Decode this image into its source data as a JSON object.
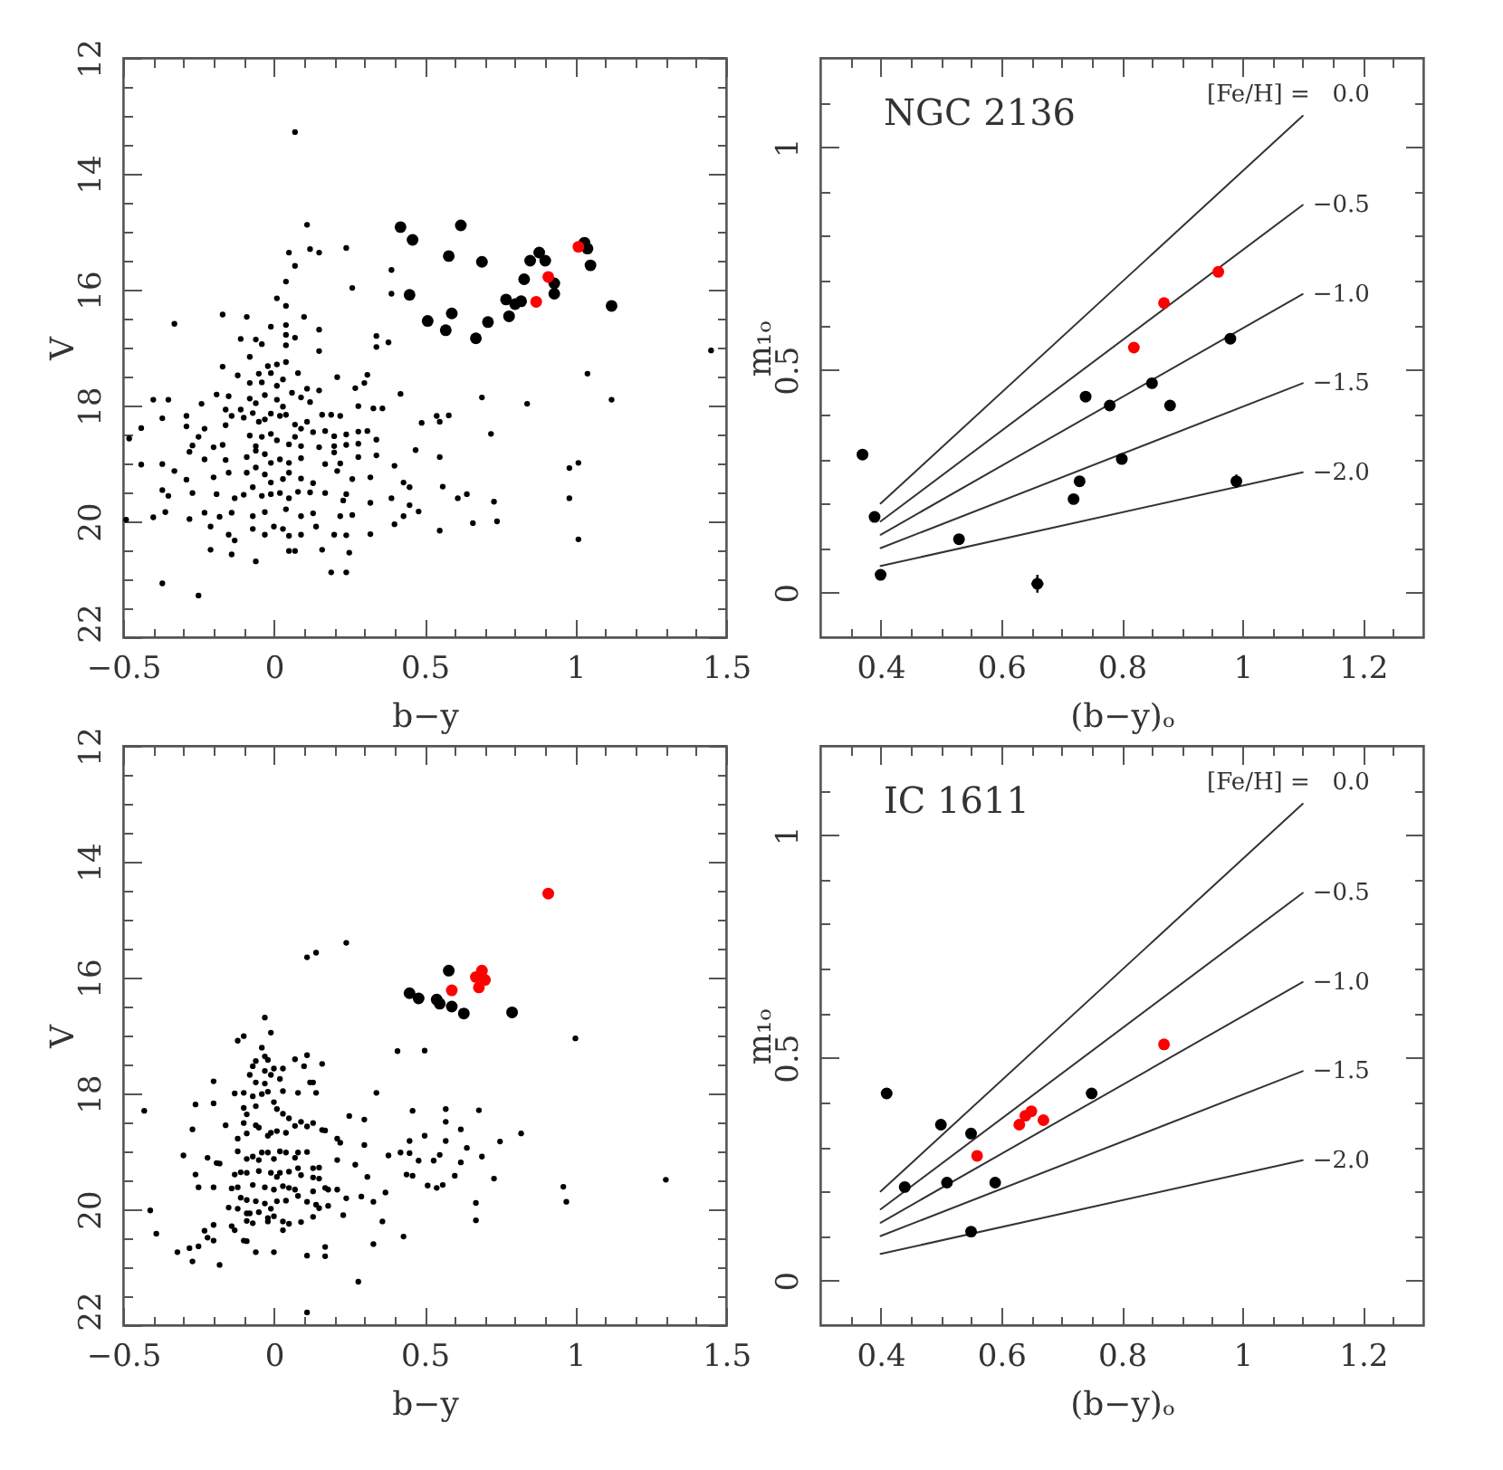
{
  "chart_data": [
    {
      "type": "scatter",
      "xlabel": "b−y",
      "ylabel": "V",
      "xlim": [
        -0.5,
        1.5
      ],
      "ylim": [
        22,
        12
      ],
      "marker": "circle",
      "xticks": [
        {
          "value": -0.5,
          "label": "−0.5"
        },
        {
          "value": -0.4,
          "label": null
        },
        {
          "value": -0.3,
          "label": null
        },
        {
          "value": -0.2,
          "label": null
        },
        {
          "value": -0.1,
          "label": null
        },
        0,
        {
          "value": 0.1,
          "label": null
        },
        {
          "value": 0.2,
          "label": null
        },
        {
          "value": 0.3,
          "label": null
        },
        {
          "value": 0.4,
          "label": null
        },
        0.5,
        {
          "value": 0.6,
          "label": null
        },
        {
          "value": 0.7,
          "label": null
        },
        {
          "value": 0.8,
          "label": null
        },
        {
          "value": 0.9,
          "label": null
        },
        1,
        {
          "value": 1.1,
          "label": null
        },
        {
          "value": 1.2,
          "label": null
        },
        {
          "value": 1.3,
          "label": null
        },
        {
          "value": 1.4,
          "label": null
        },
        1.5
      ],
      "yticks": [
        12,
        {
          "value": 12.5,
          "label": null
        },
        {
          "value": 13,
          "label": null
        },
        {
          "value": 13.5,
          "label": null
        },
        14,
        {
          "value": 14.5,
          "label": null
        },
        {
          "value": 15,
          "label": null
        },
        {
          "value": 15.5,
          "label": null
        },
        16,
        {
          "value": 16.5,
          "label": null
        },
        {
          "value": 17,
          "label": null
        },
        {
          "value": 17.5,
          "label": null
        },
        18,
        {
          "value": 18.5,
          "label": null
        },
        {
          "value": 19,
          "label": null
        },
        {
          "value": 19.5,
          "label": null
        },
        20,
        {
          "value": 20.5,
          "label": null
        },
        {
          "value": 21,
          "label": null
        },
        {
          "value": 21.5,
          "label": null
        },
        22
      ],
      "series": [
        {
          "color": "#000000",
          "x": [
            0.05,
            0.12,
            0.15,
            0.24,
            0.07,
            0.39,
            0.26,
            0.04,
            0.01,
            0.39,
            0.04,
            -0.33,
            -0.17,
            -0.09,
            0.1,
            -0.01,
            0.04,
            0.15,
            -0.11,
            -0.06,
            -0.04,
            0.04,
            0.07,
            0.34,
            0.34,
            0.38,
            0.15,
            -0.08,
            0.04,
            0.01,
            -0.17,
            -0.02,
            0.04,
            -0.01,
            -0.05,
            -0.12,
            -0.08,
            -0.04,
            0.01,
            0.03,
            0.08,
            0.11,
            0.15,
            0.21,
            0.27,
            0.31,
            0.3,
            -0.4,
            -0.35,
            -0.24,
            -0.19,
            -0.15,
            -0.11,
            -0.08,
            -0.06,
            -0.03,
            0.01,
            0.03,
            0.06,
            0.09,
            0.12,
            0.16,
            0.19,
            0.22,
            0.28,
            0.33,
            0.36,
            0.42,
            -0.37,
            -0.29,
            -0.29,
            -0.23,
            -0.16,
            -0.16,
            -0.14,
            -0.1,
            -0.07,
            -0.05,
            -0.03,
            -0.01,
            0.02,
            0.04,
            0.07,
            0.09,
            0.11,
            0.13,
            0.17,
            0.2,
            0.24,
            0.28,
            0.31,
            0.49,
            0.54,
            0.55,
            0.58,
            -0.48,
            -0.44,
            -0.25,
            -0.27,
            -0.2,
            -0.17,
            -0.08,
            -0.06,
            -0.04,
            -0.01,
            0.01,
            0.05,
            0.07,
            0.09,
            0.15,
            0.2,
            0.24,
            0.28,
            0.34,
            -0.28,
            -0.23,
            -0.16,
            -0.09,
            -0.06,
            -0.03,
            -0.01,
            0.02,
            0.05,
            0.09,
            0.2,
            0.22,
            0.28,
            0.34,
            0.47,
            0.55,
            -0.44,
            -0.37,
            -0.33,
            -0.29,
            -0.2,
            -0.15,
            -0.09,
            -0.06,
            -0.03,
            -0.01,
            0.03,
            0.05,
            0.09,
            0.13,
            0.17,
            0.21,
            0.26,
            0.32,
            0.4,
            0.43,
            0.45,
            0.56,
            0.61,
            0.64,
            -0.37,
            -0.35,
            -0.27,
            -0.19,
            -0.13,
            -0.1,
            -0.07,
            -0.04,
            -0.01,
            0.02,
            0.05,
            0.08,
            0.12,
            0.17,
            0.23,
            0.24,
            0.32,
            0.39,
            0.45,
            0.48,
            -0.4,
            -0.36,
            -0.28,
            -0.23,
            -0.18,
            -0.14,
            -0.07,
            -0.03,
            0.04,
            0.09,
            0.13,
            0.22,
            0.26,
            0.4,
            0.43,
            0.55,
            -0.21,
            -0.15,
            -0.13,
            -0.07,
            -0.03,
            0,
            0.03,
            0.05,
            0.09,
            0.14,
            0.2,
            0.24,
            0.32,
            -0.21,
            -0.14,
            -0.06,
            0.05,
            0.07,
            0.16,
            0.25,
            0.19,
            0.24,
            -0.37,
            -0.25,
            0.07,
            0.11,
            1.04,
            1.12,
            1.45,
            0.98,
            1.01,
            0.98,
            1.01,
            0.84,
            0.69,
            0.72,
            0.73,
            0.74,
            0.66,
            -0.49
          ],
          "values": [
            15.36,
            15.3,
            15.36,
            15.28,
            15.59,
            15.66,
            15.97,
            15.86,
            16.15,
            16.07,
            16.28,
            16.59,
            16.43,
            16.47,
            16.47,
            16.64,
            16.61,
            16.69,
            16.85,
            16.86,
            16.94,
            16.78,
            16.83,
            16.8,
            16.99,
            16.91,
            17.06,
            17.16,
            16.96,
            17.29,
            17.33,
            17.32,
            17.25,
            17.44,
            17.45,
            17.48,
            17.61,
            17.6,
            17.66,
            17.55,
            17.44,
            17.71,
            17.74,
            17.51,
            17.7,
            17.47,
            17.61,
            17.9,
            17.9,
            17.97,
            17.81,
            17.84,
            18.07,
            17.88,
            17.96,
            17.82,
            17.9,
            18.02,
            17.78,
            17.86,
            17.94,
            18.16,
            18.16,
            18.18,
            18.01,
            18.05,
            18.05,
            17.8,
            18.22,
            18.18,
            18.36,
            18.4,
            18.07,
            18.34,
            18.18,
            18.21,
            18.13,
            18.28,
            18.24,
            18.14,
            18.18,
            18.16,
            18.33,
            18.4,
            18.28,
            18.46,
            18.44,
            18.53,
            18.5,
            18.45,
            18.44,
            18.3,
            18.18,
            18.28,
            18.17,
            18.57,
            18.39,
            18.54,
            18.69,
            18.72,
            18.68,
            18.52,
            18.7,
            18.54,
            18.49,
            18.6,
            18.67,
            18.54,
            18.7,
            18.72,
            18.7,
            18.68,
            18.66,
            18.59,
            18.8,
            18.93,
            18.94,
            18.89,
            18.78,
            18.84,
            18.99,
            18.93,
            18.99,
            18.91,
            18.81,
            19,
            18.89,
            18.86,
            18.77,
            18.89,
            19.02,
            19.01,
            19.13,
            19.28,
            19.24,
            19.16,
            19.16,
            19.07,
            19.19,
            19.33,
            19.27,
            19.16,
            19.26,
            19.34,
            19.01,
            19.13,
            19.27,
            19.24,
            19.04,
            19.33,
            19.41,
            19.4,
            19.6,
            19.53,
            19.46,
            19.56,
            19.51,
            19.53,
            19.6,
            19.54,
            19.41,
            19.56,
            19.53,
            19.51,
            19.6,
            19.49,
            19.5,
            19.51,
            19.64,
            19.53,
            19.68,
            19.6,
            19.72,
            19.83,
            19.93,
            19.84,
            19.96,
            19.85,
            19.92,
            19.85,
            19.91,
            19.84,
            19.79,
            19.91,
            19.86,
            19.91,
            19.89,
            20.05,
            19.91,
            20.16,
            20.09,
            20.23,
            20.33,
            20.13,
            20.23,
            20.09,
            20.13,
            20.25,
            20.23,
            20.09,
            20.23,
            20.24,
            20.22,
            20.49,
            20.57,
            20.69,
            20.51,
            20.51,
            20.49,
            20.54,
            20.88,
            20.88,
            21.07,
            21.28,
            13.28,
            14.88,
            17.45,
            17.9,
            17.05,
            19.08,
            18.99,
            19.6,
            20.31,
            17.97,
            17.86,
            18.49,
            19.66,
            20,
            20.03,
            19.97
          ]
        },
        {
          "color": "#000000",
          "x": [
            0.42,
            0.46,
            0.62,
            0.58,
            0.69,
            0.88,
            0.85,
            0.9,
            1.03,
            1.04,
            1.05,
            0.83,
            0.93,
            0.93,
            0.45,
            0.77,
            0.8,
            0.82,
            0.78,
            0.71,
            0.67,
            0.59,
            0.57,
            0.51,
            1.12
          ],
          "values": [
            14.92,
            15.14,
            14.89,
            15.42,
            15.52,
            15.36,
            15.5,
            15.5,
            15.19,
            15.29,
            15.58,
            15.82,
            15.89,
            16.07,
            16.09,
            16.17,
            16.25,
            16.2,
            16.46,
            16.56,
            16.84,
            16.41,
            16.7,
            16.54,
            16.28
          ]
        },
        {
          "color": "#ff0000",
          "x": [
            1.01,
            0.91,
            0.87
          ],
          "values": [
            15.26,
            15.78,
            16.21
          ]
        }
      ]
    },
    {
      "type": "scatter",
      "title": "NGC 2136",
      "xlabel": "(b−y)ₒ",
      "ylabel": "m₁ₒ",
      "xlim": [
        0.3,
        1.3
      ],
      "ylim": [
        -0.1,
        1.2
      ],
      "marker": "circle",
      "annotations": [
        "[Fe/H] ="
      ],
      "xticks": [
        {
          "value": 0.35,
          "label": null
        },
        0.4,
        {
          "value": 0.45,
          "label": null
        },
        {
          "value": 0.5,
          "label": null
        },
        {
          "value": 0.55,
          "label": null
        },
        0.6,
        {
          "value": 0.65,
          "label": null
        },
        {
          "value": 0.7,
          "label": null
        },
        {
          "value": 0.75,
          "label": null
        },
        0.8,
        {
          "value": 0.85,
          "label": null
        },
        {
          "value": 0.9,
          "label": null
        },
        {
          "value": 0.95,
          "label": null
        },
        1,
        {
          "value": 1.05,
          "label": null
        },
        {
          "value": 1.1,
          "label": null
        },
        {
          "value": 1.15,
          "label": null
        },
        1.2,
        {
          "value": 1.25,
          "label": null
        }
      ],
      "yticks": [
        0,
        {
          "value": 0.1,
          "label": null
        },
        {
          "value": 0.2,
          "label": null
        },
        {
          "value": 0.3,
          "label": null
        },
        {
          "value": 0.4,
          "label": null
        },
        0.5,
        {
          "value": 0.6,
          "label": null
        },
        {
          "value": 0.7,
          "label": null
        },
        {
          "value": 0.8,
          "label": null
        },
        {
          "value": 0.9,
          "label": null
        },
        1,
        {
          "value": 1.1,
          "label": null
        }
      ],
      "series": [
        {
          "type": "line",
          "name": "0.0",
          "color": "#333333",
          "marker": "none",
          "x": [
            0.4,
            1.1
          ],
          "values": [
            0.2,
            1.07
          ]
        },
        {
          "type": "line",
          "name": "−0.5",
          "color": "#333333",
          "marker": "none",
          "x": [
            0.4,
            1.1
          ],
          "values": [
            0.16,
            0.87
          ]
        },
        {
          "type": "line",
          "name": "−1.0",
          "color": "#333333",
          "marker": "none",
          "x": [
            0.4,
            1.1
          ],
          "values": [
            0.13,
            0.67
          ]
        },
        {
          "type": "line",
          "name": "−1.5",
          "color": "#333333",
          "marker": "none",
          "x": [
            0.4,
            1.1
          ],
          "values": [
            0.1,
            0.47
          ]
        },
        {
          "type": "line",
          "name": "−2.0",
          "color": "#333333",
          "marker": "none",
          "x": [
            0.4,
            1.1
          ],
          "values": [
            0.06,
            0.27
          ]
        },
        {
          "color": "#000000",
          "x": [
            0.37,
            0.39,
            0.4,
            0.53,
            0.66,
            0.72,
            0.73,
            0.74,
            0.78,
            0.8,
            0.85,
            0.88,
            0.98,
            0.99
          ],
          "values": [
            0.31,
            0.17,
            0.04,
            0.12,
            0.02,
            0.21,
            0.25,
            0.44,
            0.42,
            0.3,
            0.47,
            0.42,
            0.57,
            0.25
          ],
          "errors": [
            null,
            null,
            null,
            null,
            0.02,
            null,
            null,
            null,
            null,
            null,
            null,
            null,
            null,
            0.015
          ],
          "xerrors": [
            null,
            null,
            null,
            null,
            0.01,
            null,
            null,
            null,
            null,
            null,
            null,
            null,
            null,
            null
          ]
        },
        {
          "color": "#ff0000",
          "x": [
            0.82,
            0.87,
            0.96
          ],
          "values": [
            0.55,
            0.65,
            0.72
          ]
        }
      ]
    },
    {
      "type": "scatter",
      "xlabel": "b−y",
      "ylabel": "V",
      "xlim": [
        -0.5,
        1.5
      ],
      "ylim": [
        22,
        12
      ],
      "marker": "circle",
      "xticks": [
        {
          "value": -0.5,
          "label": "−0.5"
        },
        {
          "value": -0.4,
          "label": null
        },
        {
          "value": -0.3,
          "label": null
        },
        {
          "value": -0.2,
          "label": null
        },
        {
          "value": -0.1,
          "label": null
        },
        0,
        {
          "value": 0.1,
          "label": null
        },
        {
          "value": 0.2,
          "label": null
        },
        {
          "value": 0.3,
          "label": null
        },
        {
          "value": 0.4,
          "label": null
        },
        0.5,
        {
          "value": 0.6,
          "label": null
        },
        {
          "value": 0.7,
          "label": null
        },
        {
          "value": 0.8,
          "label": null
        },
        {
          "value": 0.9,
          "label": null
        },
        1,
        {
          "value": 1.1,
          "label": null
        },
        {
          "value": 1.2,
          "label": null
        },
        {
          "value": 1.3,
          "label": null
        },
        {
          "value": 1.4,
          "label": null
        },
        1.5
      ],
      "yticks": [
        12,
        {
          "value": 12.5,
          "label": null
        },
        {
          "value": 13,
          "label": null
        },
        {
          "value": 13.5,
          "label": null
        },
        14,
        {
          "value": 14.5,
          "label": null
        },
        {
          "value": 15,
          "label": null
        },
        {
          "value": 15.5,
          "label": null
        },
        16,
        {
          "value": 16.5,
          "label": null
        },
        {
          "value": 17,
          "label": null
        },
        {
          "value": 17.5,
          "label": null
        },
        18,
        {
          "value": 18.5,
          "label": null
        },
        {
          "value": 19,
          "label": null
        },
        {
          "value": 19.5,
          "label": null
        },
        20,
        {
          "value": 20.5,
          "label": null
        },
        {
          "value": 21,
          "label": null
        },
        {
          "value": 21.5,
          "label": null
        },
        22
      ],
      "series": [
        {
          "color": "#000000",
          "x": [
            -0.03,
            -0.01,
            -0.12,
            -0.1,
            -0.04,
            -0.06,
            -0.03,
            -0.02,
            -0.03,
            -0.01,
            0,
            0.03,
            0.07,
            0.1,
            0.11,
            0.16,
            -0.07,
            -0.08,
            -0.13,
            -0.06,
            -0.03,
            0.02,
            -0.2,
            -0.26,
            -0.2,
            -0.1,
            -0.07,
            -0.04,
            -0.02,
            0.03,
            0.08,
            0.12,
            0.13,
            0.14,
            0,
            -0.06,
            -0.1,
            -0.09,
            0.01,
            0.03,
            0.05,
            0.07,
            0.09,
            0.11,
            0.13,
            0.17,
            0.25,
            0.3,
            0.34,
            0.41,
            0.5,
            0.46,
            0.57,
            -0.27,
            -0.16,
            -0.1,
            -0.06,
            -0.05,
            -0.09,
            -0.12,
            -0.02,
            -0.01,
            0.01,
            0.04,
            0.16,
            0.21,
            0.22,
            0.3,
            0.27,
            0.45,
            0.5,
            0.57,
            0.62,
            0.64,
            -0.3,
            -0.22,
            -0.19,
            -0.18,
            -0.12,
            -0.09,
            -0.07,
            -0.05,
            -0.04,
            -0.02,
            0,
            0.02,
            0.04,
            0.07,
            0.08,
            0.11,
            0.13,
            0.15,
            0.21,
            0.38,
            0.42,
            0.45,
            0.48,
            0.53,
            0.55,
            0.62,
            -0.26,
            -0.13,
            -0.11,
            -0.09,
            -0.05,
            -0.01,
            0.01,
            0.02,
            0.05,
            0.08,
            0.09,
            0.13,
            0.15,
            0.31,
            0.44,
            0.46,
            0.51,
            0.54,
            0.56,
            0.6,
            -0.25,
            -0.2,
            -0.14,
            -0.12,
            -0.07,
            -0.03,
            0,
            0.03,
            0.05,
            0.07,
            0.08,
            0.13,
            0.17,
            0.18,
            0.21,
            0.24,
            0.29,
            0.37,
            -0.11,
            -0.09,
            -0.06,
            -0.03,
            -0.01,
            0.01,
            0.04,
            0.11,
            0.14,
            0.15,
            0.18,
            0.23,
            0.33,
            -0.41,
            -0.15,
            -0.12,
            -0.09,
            -0.08,
            -0.05,
            -0.02,
            0,
            0.03,
            0.05,
            0.09,
            0.13,
            0.36,
            -0.23,
            -0.2,
            -0.14,
            -0.13,
            -0.09,
            -0.07,
            -0.02,
            -0.39,
            -0.22,
            -0.2,
            -0.32,
            -0.28,
            -0.25,
            -0.1,
            -0.09,
            0.03,
            0.43,
            0.33,
            -0.27,
            -0.18,
            -0.06,
            0,
            0.11,
            0.17,
            0.17,
            0.28,
            0.11,
            -0.43,
            0.11,
            0.14,
            0.24,
            1,
            1.3,
            0.96,
            0.97,
            0.82,
            0.75,
            0.68,
            0.73,
            0.69,
            0.67,
            0.67,
            0.57
          ],
          "values": [
            16.69,
            16.95,
            17.09,
            17.01,
            17.21,
            17.44,
            17.36,
            17.42,
            17.61,
            17.68,
            17.57,
            17.57,
            17.41,
            17.53,
            17.34,
            17.49,
            17.53,
            17.68,
            18,
            17.81,
            17.83,
            17.75,
            17.79,
            18.19,
            18.17,
            17.99,
            18.05,
            18.01,
            17.97,
            17.96,
            17.99,
            17.81,
            17.81,
            17.99,
            18.15,
            18.22,
            18.25,
            18.36,
            18.27,
            18.35,
            18.43,
            18.56,
            18.49,
            18.57,
            18.51,
            18.64,
            18.39,
            18.45,
            17.99,
            17.27,
            17.26,
            18.3,
            18.27,
            18.62,
            18.55,
            18.51,
            18.55,
            18.59,
            18.69,
            18.78,
            18.73,
            18.68,
            18.65,
            18.68,
            18.63,
            18.78,
            18.85,
            18.89,
            19.23,
            18.82,
            18.73,
            18.82,
            18.62,
            18.94,
            19.07,
            19.11,
            19.2,
            19.21,
            19,
            19.13,
            19.09,
            19.15,
            19.02,
            19.02,
            19.13,
            19,
            19.02,
            19.11,
            19.02,
            19.01,
            19.29,
            19.28,
            19.15,
            19.07,
            19.02,
            19.03,
            19.16,
            19.16,
            19.06,
            19.19,
            19.4,
            19.4,
            19.36,
            19.37,
            19.34,
            19.37,
            19.44,
            19.37,
            19.35,
            19.29,
            19.41,
            19.45,
            19.47,
            19.44,
            19.4,
            19.42,
            19.59,
            19.63,
            19.58,
            19.42,
            19.62,
            19.62,
            19.64,
            19.62,
            19.58,
            19.62,
            19.66,
            19.6,
            19.63,
            19.66,
            19.77,
            19.69,
            19.63,
            19.66,
            19.66,
            19.81,
            19.78,
            19.71,
            19.8,
            19.84,
            19.86,
            19.9,
            19.99,
            19.86,
            19.85,
            19.87,
            19.92,
            19.98,
            19.94,
            20.1,
            19.87,
            20.02,
            19.97,
            19.99,
            20.07,
            20.07,
            20.05,
            20.15,
            20.12,
            20.21,
            20.25,
            20.22,
            20.13,
            20.21,
            20.37,
            20.27,
            20.29,
            20.36,
            20.2,
            20.24,
            20.21,
            20.42,
            20.49,
            20.54,
            20.74,
            20.67,
            20.64,
            20.54,
            20.55,
            20.36,
            20.47,
            20.6,
            20.9,
            20.96,
            20.74,
            20.74,
            20.8,
            20.81,
            20.65,
            21.25,
            21.78,
            18.3,
            15.65,
            15.57,
            15.4,
            17.05,
            19.49,
            19.61,
            19.87,
            18.69,
            18.83,
            18.29,
            19.47,
            19.09,
            19.89,
            20.19,
            18.49
          ]
        },
        {
          "color": "#000000",
          "x": [
            0.58,
            0.45,
            0.48,
            0.54,
            0.55,
            0.59,
            0.63,
            0.79
          ],
          "values": [
            15.88,
            16.27,
            16.36,
            16.38,
            16.45,
            16.5,
            16.62,
            16.6
          ]
        },
        {
          "color": "#ff0000",
          "x": [
            0.91,
            0.59,
            0.69,
            0.67,
            0.7,
            0.68
          ],
          "values": [
            14.55,
            16.22,
            15.88,
            15.99,
            16.04,
            16.17
          ]
        }
      ]
    },
    {
      "type": "scatter",
      "title": "IC 1611",
      "xlabel": "(b−y)ₒ",
      "ylabel": "m₁ₒ",
      "xlim": [
        0.3,
        1.3
      ],
      "ylim": [
        -0.1,
        1.2
      ],
      "marker": "circle",
      "annotations": [
        "[Fe/H] ="
      ],
      "xticks": [
        {
          "value": 0.35,
          "label": null
        },
        0.4,
        {
          "value": 0.45,
          "label": null
        },
        {
          "value": 0.5,
          "label": null
        },
        {
          "value": 0.55,
          "label": null
        },
        0.6,
        {
          "value": 0.65,
          "label": null
        },
        {
          "value": 0.7,
          "label": null
        },
        {
          "value": 0.75,
          "label": null
        },
        0.8,
        {
          "value": 0.85,
          "label": null
        },
        {
          "value": 0.9,
          "label": null
        },
        {
          "value": 0.95,
          "label": null
        },
        1,
        {
          "value": 1.05,
          "label": null
        },
        {
          "value": 1.1,
          "label": null
        },
        {
          "value": 1.15,
          "label": null
        },
        1.2,
        {
          "value": 1.25,
          "label": null
        }
      ],
      "yticks": [
        0,
        {
          "value": 0.1,
          "label": null
        },
        {
          "value": 0.2,
          "label": null
        },
        {
          "value": 0.3,
          "label": null
        },
        {
          "value": 0.4,
          "label": null
        },
        0.5,
        {
          "value": 0.6,
          "label": null
        },
        {
          "value": 0.7,
          "label": null
        },
        {
          "value": 0.8,
          "label": null
        },
        {
          "value": 0.9,
          "label": null
        },
        1,
        {
          "value": 1.1,
          "label": null
        }
      ],
      "series": [
        {
          "type": "line",
          "name": "0.0",
          "color": "#333333",
          "marker": "none",
          "x": [
            0.4,
            1.1
          ],
          "values": [
            0.2,
            1.07
          ]
        },
        {
          "type": "line",
          "name": "−0.5",
          "color": "#333333",
          "marker": "none",
          "x": [
            0.4,
            1.1
          ],
          "values": [
            0.16,
            0.87
          ]
        },
        {
          "type": "line",
          "name": "−1.0",
          "color": "#333333",
          "marker": "none",
          "x": [
            0.4,
            1.1
          ],
          "values": [
            0.13,
            0.67
          ]
        },
        {
          "type": "line",
          "name": "−1.5",
          "color": "#333333",
          "marker": "none",
          "x": [
            0.4,
            1.1
          ],
          "values": [
            0.1,
            0.47
          ]
        },
        {
          "type": "line",
          "name": "−2.0",
          "color": "#333333",
          "marker": "none",
          "x": [
            0.4,
            1.1
          ],
          "values": [
            0.06,
            0.27
          ]
        },
        {
          "color": "#000000",
          "x": [
            0.41,
            0.44,
            0.5,
            0.51,
            0.55,
            0.55,
            0.59,
            0.75
          ],
          "values": [
            0.42,
            0.21,
            0.35,
            0.22,
            0.11,
            0.33,
            0.22,
            0.42
          ]
        },
        {
          "color": "#ff0000",
          "x": [
            0.56,
            0.63,
            0.64,
            0.65,
            0.67,
            0.87
          ],
          "values": [
            0.28,
            0.35,
            0.37,
            0.38,
            0.36,
            0.53
          ]
        }
      ]
    }
  ]
}
